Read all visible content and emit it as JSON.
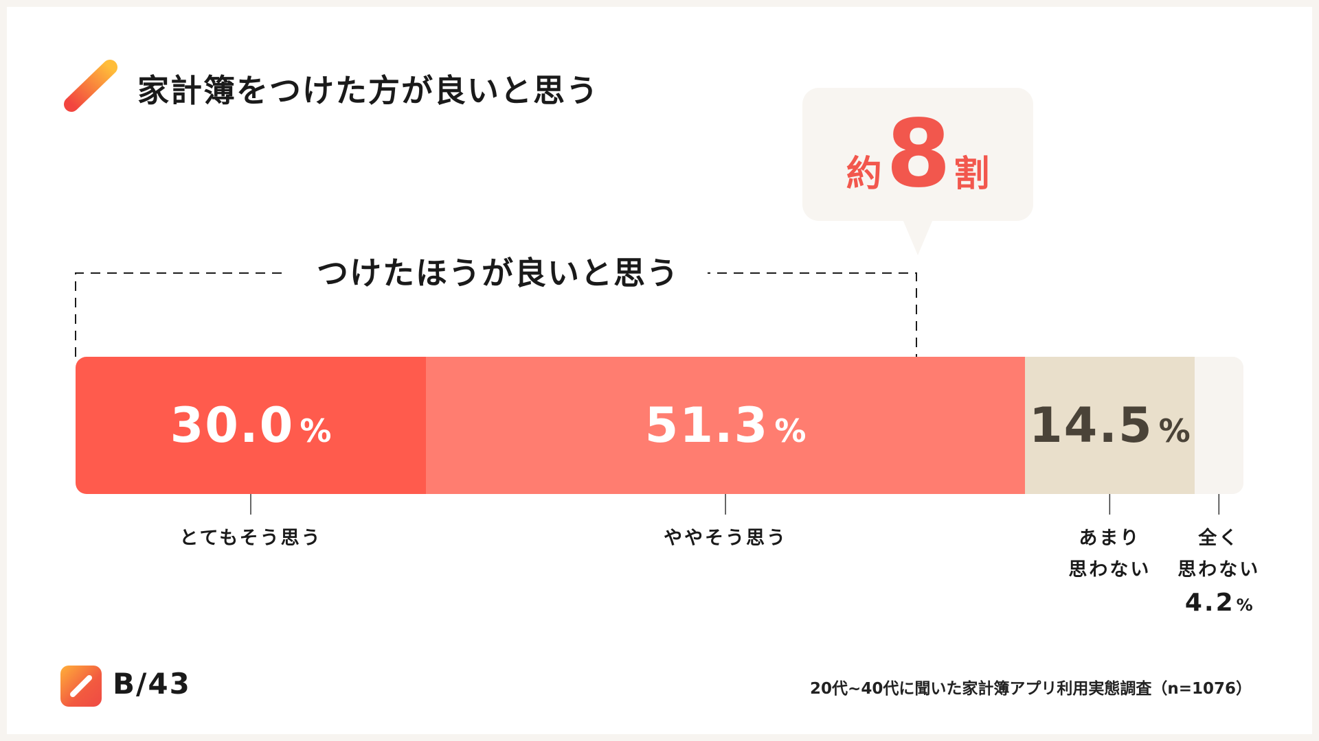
{
  "page": {
    "title": "家計簿をつけた方が良いと思う"
  },
  "callout": {
    "prefix": "約",
    "number": "8",
    "suffix": "割"
  },
  "bracket": {
    "label": "つけたほうが良いと思う"
  },
  "chart_data": {
    "type": "bar",
    "orientation": "horizontal-stacked-100",
    "categories": [
      "とてもそう思う",
      "ややそう思う",
      "あまり思わない",
      "全く思わない"
    ],
    "category_lines": [
      [
        "とてもそう思う"
      ],
      [
        "ややそう思う"
      ],
      [
        "あまり",
        "思わない"
      ],
      [
        "全く",
        "思わない"
      ]
    ],
    "values": [
      30.0,
      51.3,
      14.5,
      4.2
    ],
    "value_labels": [
      "30.0",
      "51.3",
      "14.5",
      "4.2"
    ],
    "unit": "%",
    "colors": [
      "#ff5b4d",
      "#ff7d70",
      "#e9dfcb",
      "#f7f4f0"
    ],
    "value_colors": [
      "#ffffff",
      "#ffffff",
      "#4a4338",
      "#1a1a1a"
    ],
    "total": 100
  },
  "brand": {
    "name": "B/43"
  },
  "footnote": "20代~40代に聞いた家計簿アプリ利用実態調査（n=1076）"
}
